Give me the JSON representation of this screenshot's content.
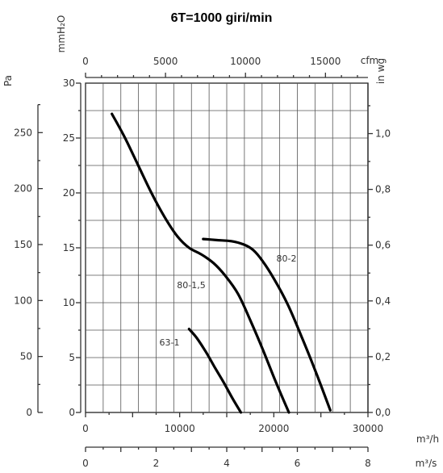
{
  "chart_data": {
    "type": "line",
    "title": "6T=1000 giri/min",
    "x_axes": {
      "m3h": {
        "unit": "m³/h",
        "min": 0,
        "max": 30000,
        "ticks": [
          0,
          10000,
          20000,
          30000
        ]
      },
      "m3s": {
        "unit": "m³/s",
        "min": 0,
        "max": 8,
        "ticks": [
          0,
          2,
          4,
          6,
          8
        ]
      },
      "cfm": {
        "unit": "cfm",
        "min": 0,
        "max": 17657,
        "ticks": [
          0,
          5000,
          10000,
          15000
        ]
      }
    },
    "y_axes": {
      "mmh2o": {
        "unit": "mmH₂O",
        "min": 0,
        "max": 30,
        "ticks": [
          0,
          5,
          10,
          15,
          20,
          25,
          30
        ]
      },
      "pa": {
        "unit": "Pa",
        "min": 0,
        "max": 294.2,
        "ticks": [
          0,
          50,
          100,
          150,
          200,
          250
        ]
      },
      "inwg": {
        "unit": "in wg",
        "min": 0,
        "max": 1.181,
        "ticks": [
          "0,0",
          "0,2",
          "0,4",
          "0,6",
          "0,8",
          "1,0"
        ]
      }
    },
    "grid": true,
    "series": [
      {
        "name": "80-1,5",
        "x_m3h": [
          2800,
          4200,
          5600,
          7000,
          8400,
          9800,
          11000,
          12300,
          13600,
          14800,
          16200,
          17500,
          18800,
          20200,
          21600
        ],
        "y_mmh2o": [
          27.2,
          25.0,
          22.5,
          20.0,
          17.8,
          16.0,
          15.0,
          14.4,
          13.6,
          12.5,
          10.8,
          8.4,
          5.8,
          2.8,
          0
        ]
      },
      {
        "name": "80-2",
        "x_m3h": [
          12500,
          14000,
          15500,
          16800,
          17800,
          18800,
          20000,
          21500,
          23000,
          24500,
          26000
        ],
        "y_mmh2o": [
          15.8,
          15.7,
          15.6,
          15.3,
          14.8,
          13.8,
          12.2,
          9.8,
          6.8,
          3.6,
          0.2
        ]
      },
      {
        "name": "63-1",
        "x_m3h": [
          11000,
          11800,
          12800,
          13800,
          14700,
          15600,
          16500
        ],
        "y_mmh2o": [
          7.6,
          6.8,
          5.5,
          4.0,
          2.7,
          1.3,
          0
        ]
      }
    ]
  }
}
